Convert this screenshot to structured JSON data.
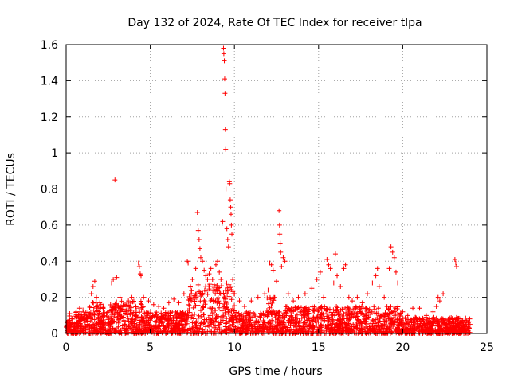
{
  "chart_data": {
    "type": "scatter",
    "title": "Day 132 of 2024, Rate Of TEC Index for receiver tlpa",
    "xlabel": "GPS time / hours",
    "ylabel": "ROTI / TECUs",
    "xlim": [
      0,
      25
    ],
    "ylim": [
      0,
      1.6
    ],
    "x_ticks": [
      "0",
      "5",
      "10",
      "15",
      "20",
      "25"
    ],
    "y_ticks": [
      "0",
      "0.2",
      "0.4",
      "0.6",
      "0.8",
      "1",
      "1.2",
      "1.4",
      "1.6"
    ],
    "grid": true,
    "marker": "+",
    "marker_color": "#ff0000",
    "background_band": {
      "description": "dense scatter of ROTI values between 0 and ~0.12 TECU/min across all hours",
      "hours": [
        0,
        24
      ],
      "typical_max": 0.12
    },
    "series": [
      {
        "name": "ROTI",
        "points": [
          [
            0.1,
            0.03
          ],
          [
            0.2,
            0.05
          ],
          [
            0.4,
            0.08
          ],
          [
            0.6,
            0.12
          ],
          [
            0.8,
            0.14
          ],
          [
            1.0,
            0.13
          ],
          [
            1.2,
            0.1
          ],
          [
            1.5,
            0.22
          ],
          [
            1.6,
            0.26
          ],
          [
            1.7,
            0.29
          ],
          [
            1.8,
            0.2
          ],
          [
            2.0,
            0.17
          ],
          [
            2.2,
            0.14
          ],
          [
            2.5,
            0.12
          ],
          [
            2.7,
            0.28
          ],
          [
            2.8,
            0.3
          ],
          [
            2.9,
            0.85
          ],
          [
            3.0,
            0.31
          ],
          [
            3.2,
            0.2
          ],
          [
            3.5,
            0.16
          ],
          [
            3.7,
            0.18
          ],
          [
            3.9,
            0.2
          ],
          [
            4.1,
            0.15
          ],
          [
            4.3,
            0.39
          ],
          [
            4.35,
            0.37
          ],
          [
            4.4,
            0.33
          ],
          [
            4.45,
            0.32
          ],
          [
            4.6,
            0.2
          ],
          [
            4.9,
            0.18
          ],
          [
            5.2,
            0.16
          ],
          [
            5.5,
            0.15
          ],
          [
            5.8,
            0.14
          ],
          [
            6.1,
            0.17
          ],
          [
            6.4,
            0.19
          ],
          [
            6.7,
            0.17
          ],
          [
            7.0,
            0.22
          ],
          [
            7.2,
            0.4
          ],
          [
            7.25,
            0.39
          ],
          [
            7.5,
            0.3
          ],
          [
            7.7,
            0.36
          ],
          [
            7.8,
            0.67
          ],
          [
            7.85,
            0.57
          ],
          [
            7.9,
            0.52
          ],
          [
            7.95,
            0.47
          ],
          [
            8.0,
            0.42
          ],
          [
            8.1,
            0.4
          ],
          [
            8.2,
            0.35
          ],
          [
            8.3,
            0.32
          ],
          [
            8.4,
            0.3
          ],
          [
            8.5,
            0.33
          ],
          [
            8.6,
            0.36
          ],
          [
            8.7,
            0.3
          ],
          [
            8.8,
            0.27
          ],
          [
            8.9,
            0.38
          ],
          [
            9.0,
            0.4
          ],
          [
            9.1,
            0.34
          ],
          [
            9.2,
            0.3
          ],
          [
            9.3,
            0.62
          ],
          [
            9.35,
            1.58
          ],
          [
            9.37,
            1.55
          ],
          [
            9.4,
            1.51
          ],
          [
            9.42,
            1.41
          ],
          [
            9.44,
            1.33
          ],
          [
            9.46,
            1.13
          ],
          [
            9.48,
            1.02
          ],
          [
            9.5,
            0.8
          ],
          [
            9.55,
            0.58
          ],
          [
            9.6,
            0.52
          ],
          [
            9.65,
            0.48
          ],
          [
            9.7,
            0.84
          ],
          [
            9.72,
            0.83
          ],
          [
            9.75,
            0.74
          ],
          [
            9.78,
            0.7
          ],
          [
            9.8,
            0.66
          ],
          [
            9.82,
            0.6
          ],
          [
            9.85,
            0.55
          ],
          [
            9.9,
            0.3
          ],
          [
            10.0,
            0.22
          ],
          [
            10.3,
            0.18
          ],
          [
            10.6,
            0.15
          ],
          [
            11.0,
            0.18
          ],
          [
            11.4,
            0.2
          ],
          [
            11.8,
            0.22
          ],
          [
            12.0,
            0.24
          ],
          [
            12.1,
            0.39
          ],
          [
            12.2,
            0.38
          ],
          [
            12.3,
            0.35
          ],
          [
            12.5,
            0.29
          ],
          [
            12.65,
            0.68
          ],
          [
            12.68,
            0.6
          ],
          [
            12.7,
            0.55
          ],
          [
            12.72,
            0.5
          ],
          [
            12.75,
            0.45
          ],
          [
            12.8,
            0.37
          ],
          [
            12.9,
            0.42
          ],
          [
            13.0,
            0.4
          ],
          [
            13.2,
            0.22
          ],
          [
            13.5,
            0.18
          ],
          [
            13.8,
            0.2
          ],
          [
            14.2,
            0.22
          ],
          [
            14.6,
            0.25
          ],
          [
            14.9,
            0.3
          ],
          [
            15.1,
            0.34
          ],
          [
            15.3,
            0.2
          ],
          [
            15.5,
            0.41
          ],
          [
            15.6,
            0.38
          ],
          [
            15.7,
            0.36
          ],
          [
            15.9,
            0.28
          ],
          [
            16.0,
            0.44
          ],
          [
            16.1,
            0.32
          ],
          [
            16.3,
            0.26
          ],
          [
            16.5,
            0.36
          ],
          [
            16.6,
            0.38
          ],
          [
            16.8,
            0.2
          ],
          [
            17.0,
            0.18
          ],
          [
            17.3,
            0.2
          ],
          [
            17.6,
            0.17
          ],
          [
            17.9,
            0.22
          ],
          [
            18.2,
            0.28
          ],
          [
            18.4,
            0.32
          ],
          [
            18.5,
            0.36
          ],
          [
            18.6,
            0.26
          ],
          [
            18.9,
            0.2
          ],
          [
            19.2,
            0.36
          ],
          [
            19.3,
            0.48
          ],
          [
            19.4,
            0.45
          ],
          [
            19.5,
            0.42
          ],
          [
            19.6,
            0.34
          ],
          [
            19.7,
            0.28
          ],
          [
            20.0,
            0.12
          ],
          [
            20.3,
            0.1
          ],
          [
            20.6,
            0.14
          ],
          [
            21.0,
            0.14
          ],
          [
            21.4,
            0.1
          ],
          [
            21.8,
            0.12
          ],
          [
            22.0,
            0.15
          ],
          [
            22.1,
            0.2
          ],
          [
            22.2,
            0.18
          ],
          [
            22.4,
            0.22
          ],
          [
            22.7,
            0.08
          ],
          [
            23.0,
            0.06
          ],
          [
            23.1,
            0.41
          ],
          [
            23.15,
            0.39
          ],
          [
            23.2,
            0.37
          ],
          [
            23.5,
            0.06
          ],
          [
            23.8,
            0.07
          ],
          [
            24.0,
            0.05
          ]
        ]
      }
    ]
  }
}
